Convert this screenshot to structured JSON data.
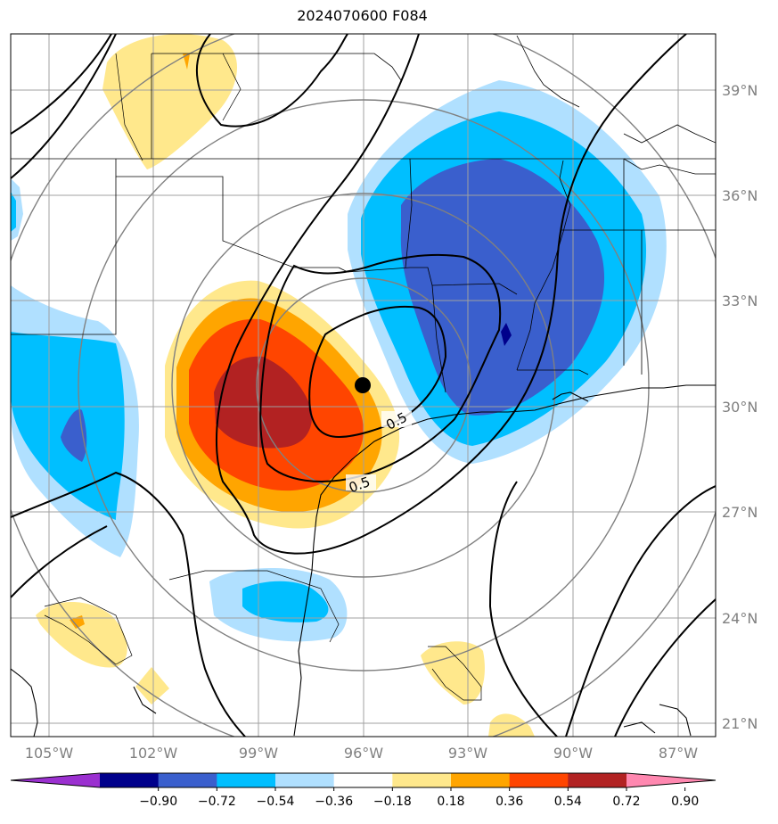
{
  "title": "2024070600 F084",
  "lat_labels": [
    "39°N",
    "36°N",
    "33°N",
    "30°N",
    "27°N",
    "24°N",
    "21°N"
  ],
  "lon_labels": [
    "105°W",
    "102°W",
    "99°W",
    "96°W",
    "93°W",
    "90°W",
    "87°W"
  ],
  "contour_labels": [
    "0.5",
    "0.5"
  ],
  "colorbar": {
    "ticks": [
      "−0.90",
      "−0.72",
      "−0.54",
      "−0.36",
      "−0.18",
      "0.18",
      "0.36",
      "0.54",
      "0.72",
      "0.90"
    ],
    "colors": [
      "#9b30d0",
      "#00008b",
      "#3a5fcd",
      "#00bfff",
      "#b0e0ff",
      "#ffffff",
      "#ffe88c",
      "#ffa500",
      "#ff4500",
      "#b22222",
      "#ff88b0"
    ]
  },
  "marker": "center-point"
}
